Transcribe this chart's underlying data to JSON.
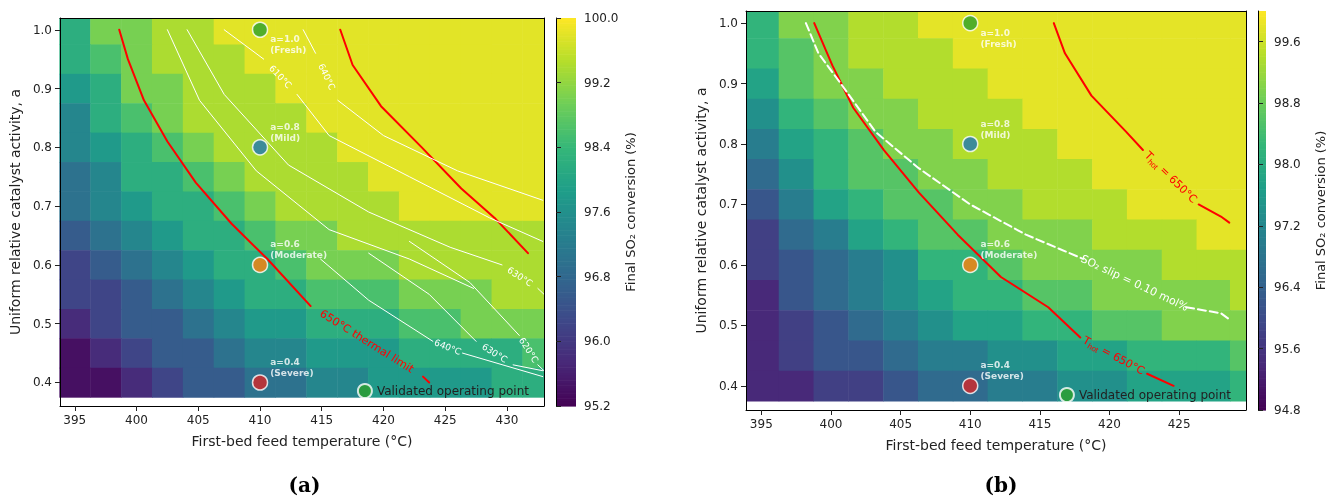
{
  "chart_data": [
    {
      "type": "heatmap",
      "title": "(a)",
      "xlabel": "First-bed feed temperature (°C)",
      "ylabel": "Uniform relative catalyst activity, a",
      "clabel": "Final SO₂ conversion (%)",
      "x": [
        395,
        397.5,
        400,
        402.5,
        405,
        407.5,
        410,
        412.5,
        415,
        417.5,
        420,
        422.5,
        425,
        427.5,
        430,
        432.5
      ],
      "y": [
        1.0,
        0.95,
        0.9,
        0.85,
        0.8,
        0.75,
        0.7,
        0.65,
        0.6,
        0.55,
        0.5,
        0.45,
        0.4
      ],
      "cells": [
        [
          98.2,
          99.0,
          99.0,
          99.4,
          99.4,
          99.8,
          99.8,
          99.8,
          99.8,
          99.8,
          99.8,
          99.8,
          99.8,
          99.8,
          99.8,
          99.8
        ],
        [
          98.2,
          98.6,
          99.0,
          99.4,
          99.4,
          99.4,
          99.8,
          99.8,
          99.8,
          99.8,
          99.8,
          99.8,
          99.8,
          99.8,
          99.8,
          99.8
        ],
        [
          97.8,
          98.2,
          99.0,
          99.0,
          99.4,
          99.4,
          99.4,
          99.8,
          99.8,
          99.8,
          99.8,
          99.8,
          99.8,
          99.8,
          99.8,
          99.8
        ],
        [
          97.4,
          98.2,
          98.6,
          99.0,
          99.4,
          99.4,
          99.4,
          99.4,
          99.8,
          99.8,
          99.8,
          99.8,
          99.8,
          99.8,
          99.8,
          99.8
        ],
        [
          97.4,
          97.8,
          98.2,
          98.6,
          99.0,
          99.4,
          99.4,
          99.4,
          99.4,
          99.8,
          99.8,
          99.8,
          99.8,
          99.8,
          99.8,
          99.8
        ],
        [
          97.0,
          97.4,
          98.2,
          98.2,
          98.6,
          99.0,
          99.4,
          99.4,
          99.4,
          99.4,
          99.8,
          99.8,
          99.8,
          99.8,
          99.8,
          99.8
        ],
        [
          97.0,
          97.4,
          97.8,
          98.2,
          98.2,
          98.6,
          99.0,
          99.4,
          99.4,
          99.4,
          99.4,
          99.8,
          99.8,
          99.8,
          99.8,
          99.8
        ],
        [
          96.6,
          97.0,
          97.4,
          97.8,
          98.2,
          98.2,
          98.6,
          99.0,
          99.0,
          99.4,
          99.4,
          99.4,
          99.4,
          99.4,
          99.4,
          99.4
        ],
        [
          96.2,
          96.6,
          97.0,
          97.4,
          97.8,
          98.2,
          98.2,
          98.6,
          99.0,
          99.0,
          99.0,
          99.4,
          99.4,
          99.4,
          99.4,
          99.4
        ],
        [
          96.2,
          96.2,
          96.6,
          97.0,
          97.4,
          97.8,
          98.2,
          98.2,
          98.6,
          98.6,
          98.6,
          99.0,
          99.0,
          99.0,
          99.4,
          99.4
        ],
        [
          95.8,
          96.2,
          96.6,
          96.6,
          97.0,
          97.4,
          97.8,
          97.8,
          98.2,
          98.2,
          98.2,
          98.6,
          98.6,
          99.0,
          99.0,
          99.0
        ],
        [
          95.4,
          95.8,
          96.2,
          96.6,
          96.6,
          97.0,
          97.4,
          97.4,
          97.8,
          97.8,
          97.8,
          98.2,
          98.2,
          98.2,
          98.2,
          98.6
        ],
        [
          95.4,
          95.4,
          95.8,
          96.2,
          96.6,
          96.6,
          97.0,
          97.0,
          97.4,
          97.4,
          97.8,
          97.8,
          97.8,
          97.8,
          98.2,
          98.2
        ]
      ],
      "clim": [
        95.2,
        100.0
      ],
      "cticks": [
        95.2,
        {
          "value": 96,
          "label": "96.0"
        },
        96.8,
        97.6,
        98.4,
        99.2,
        {
          "value": 100,
          "label": "100.0"
        }
      ],
      "xlim": [
        393.8,
        433.0
      ],
      "xticks": [
        395,
        400,
        405,
        410,
        415,
        420,
        425,
        430
      ],
      "ylim": [
        0.36,
        1.02
      ],
      "yticks": [
        0.4,
        0.5,
        0.6,
        0.7,
        0.8,
        0.9,
        {
          "value": 1,
          "label": "1.0"
        }
      ],
      "legend": "bottom right",
      "series": [
        {
          "type": "line",
          "name": "650°C thermal limit",
          "color": "#ff0000",
          "line_style": "solid",
          "marker": "none",
          "x": [
            398.6,
            399.3,
            400.6,
            402.5,
            404.8,
            407.7,
            410.6,
            414.1,
            418.6,
            423.2,
            423.7
          ],
          "values": [
            1.0,
            0.95,
            0.88,
            0.81,
            0.74,
            0.67,
            0.61,
            0.53,
            null,
            0.41,
            0.4
          ]
        },
        {
          "type": "line",
          "color": "#ff0000",
          "line_style": "solid",
          "marker": "none",
          "x": [
            416.5,
            417.5,
            419.8,
            423.1,
            426.3,
            429.0,
            431.7
          ],
          "values": [
            1.0,
            0.94,
            0.87,
            0.8,
            0.73,
            0.68,
            0.62
          ]
        },
        {
          "type": "line",
          "color": "#ffffff",
          "line_style": "solid",
          "marker": "none",
          "x": [
            402.5,
            405.1,
            409.7,
            415.6,
            422.1,
            427.3
          ],
          "values": [
            1.0,
            0.88,
            0.76,
            0.66,
            0.61,
            0.56
          ]
        },
        {
          "type": "line",
          "name": "630°C",
          "color": "#ffffff",
          "line_style": "solid",
          "marker": "none",
          "x": [
            404.1,
            407.1,
            412.3,
            418.8,
            425.4,
            429.6,
            431.4,
            432.5,
            433.0
          ],
          "values": [
            1.0,
            0.89,
            0.77,
            0.69,
            0.63,
            0.6,
            null,
            0.56,
            0.55
          ]
        },
        {
          "type": "line",
          "name": "610°C",
          "color": "#ffffff",
          "line_style": "solid",
          "marker": "none",
          "x": [
            407.1,
            410.3,
            411.7,
            413.0,
            415.6,
            422.1,
            428.6,
            432.9
          ],
          "values": [
            1.0,
            0.95,
            null,
            0.89,
            0.82,
            0.75,
            0.68,
            0.64
          ]
        },
        {
          "type": "line",
          "name": "640°C",
          "color": "#ffffff",
          "line_style": "solid",
          "marker": "none",
          "x": [
            413.5,
            414.5,
            415.4,
            416.3,
            420.0,
            426.0,
            432.9
          ],
          "values": [
            1.0,
            0.96,
            null,
            0.88,
            0.82,
            0.76,
            0.71
          ]
        },
        {
          "type": "line",
          "name": "640°C",
          "color": "#ffffff",
          "line_style": "solid",
          "marker": "none",
          "x": [
            414.9,
            418.8,
            424.0,
            425.2,
            426.4,
            432.9
          ],
          "values": [
            0.61,
            0.54,
            0.47,
            null,
            0.45,
            0.41
          ]
        },
        {
          "type": "line",
          "name": "630°C",
          "color": "#ffffff",
          "line_style": "solid",
          "marker": "none",
          "x": [
            418.8,
            423.7,
            427.5,
            429.0,
            430.5,
            432.9
          ],
          "values": [
            0.62,
            0.55,
            0.47,
            null,
            0.43,
            0.42
          ]
        },
        {
          "type": "line",
          "name": "620°C",
          "color": "#ffffff",
          "line_style": "solid",
          "marker": "none",
          "x": [
            422.1,
            427.0,
            431.0,
            432.0,
            432.5,
            433.0
          ],
          "values": [
            0.64,
            0.57,
            0.48,
            null,
            0.43,
            0.42
          ]
        },
        {
          "type": "scatter",
          "name": "Validated operating point",
          "color": "#2ca02c",
          "colors": [
            "#2ca02c",
            "#1f77b4",
            "#ff7f0e",
            "#d62728"
          ],
          "marker": "circle",
          "x": [
            410,
            410,
            410,
            410
          ],
          "values": [
            1.0,
            0.8,
            0.6,
            0.4
          ],
          "value_labels": [
            "a=1.0\n(Fresh)",
            "a=0.8\n(Mild)",
            "a=0.6\n(Moderate)",
            "a=0.4\n(Severe)"
          ]
        }
      ]
    },
    {
      "type": "heatmap",
      "title": "(b)",
      "xlabel": "First-bed feed temperature (°C)",
      "ylabel": "Uniform relative catalyst activity, a",
      "clabel": "Final SO₂ conversion (%)",
      "x": [
        395,
        397.5,
        400,
        402.5,
        405,
        407.5,
        410,
        412.5,
        415,
        417.5,
        420,
        422.5,
        425,
        427.5,
        429.8
      ],
      "y": [
        1.0,
        0.95,
        0.9,
        0.85,
        0.8,
        0.75,
        0.7,
        0.65,
        0.6,
        0.55,
        0.5,
        0.45,
        0.4
      ],
      "cells": [
        [
          98.2,
          99.0,
          99.0,
          99.4,
          99.4,
          99.8,
          99.8,
          99.8,
          99.8,
          99.8,
          99.8,
          99.8,
          99.8,
          99.8,
          99.8
        ],
        [
          98.2,
          98.6,
          99.0,
          99.4,
          99.4,
          99.4,
          99.8,
          99.8,
          99.8,
          99.8,
          99.8,
          99.8,
          99.8,
          99.8,
          99.8
        ],
        [
          97.8,
          98.6,
          99.0,
          99.0,
          99.4,
          99.4,
          99.4,
          99.8,
          99.8,
          99.8,
          99.8,
          99.8,
          99.8,
          99.8,
          99.8
        ],
        [
          97.4,
          98.2,
          98.6,
          99.0,
          99.0,
          99.4,
          99.4,
          99.4,
          99.8,
          99.8,
          99.8,
          99.8,
          99.8,
          99.8,
          99.8
        ],
        [
          97.0,
          97.8,
          98.2,
          98.6,
          99.0,
          99.0,
          99.4,
          99.4,
          99.4,
          99.8,
          99.8,
          99.8,
          99.8,
          99.8,
          99.8
        ],
        [
          96.6,
          97.4,
          98.2,
          98.6,
          98.6,
          99.0,
          99.0,
          99.4,
          99.4,
          99.4,
          99.8,
          99.8,
          99.8,
          99.8,
          99.8
        ],
        [
          96.2,
          97.0,
          97.8,
          98.2,
          98.6,
          98.6,
          99.0,
          99.0,
          99.4,
          99.4,
          99.4,
          99.8,
          99.8,
          99.8,
          99.8
        ],
        [
          95.8,
          96.6,
          97.0,
          97.8,
          98.2,
          98.6,
          98.6,
          99.0,
          99.0,
          99.0,
          99.4,
          99.4,
          99.4,
          99.8,
          99.8
        ],
        [
          95.8,
          96.2,
          96.6,
          97.0,
          97.4,
          98.2,
          98.2,
          98.6,
          99.0,
          99.0,
          99.0,
          99.0,
          99.4,
          99.4,
          99.4
        ],
        [
          95.4,
          96.2,
          96.6,
          97.0,
          97.4,
          97.8,
          98.2,
          98.2,
          98.6,
          98.6,
          99.0,
          99.0,
          99.0,
          99.0,
          99.4
        ],
        [
          95.4,
          95.8,
          96.2,
          96.6,
          97.0,
          97.4,
          97.8,
          97.8,
          98.2,
          98.2,
          98.6,
          98.6,
          99.0,
          99.0,
          99.0
        ],
        [
          95.4,
          95.8,
          96.2,
          96.2,
          96.6,
          97.0,
          97.0,
          97.4,
          97.4,
          97.8,
          97.8,
          98.2,
          98.2,
          98.2,
          98.6
        ],
        [
          95.4,
          95.4,
          95.8,
          95.8,
          96.2,
          96.6,
          96.6,
          97.0,
          97.0,
          97.4,
          97.4,
          97.8,
          97.8,
          97.8,
          98.2
        ]
      ],
      "clim": [
        94.8,
        100.0
      ],
      "cticks": [
        94.8,
        95.6,
        96.4,
        97.2,
        {
          "value": 98,
          "label": "98.0"
        },
        98.8,
        99.6
      ],
      "xlim": [
        393.9,
        429.8
      ],
      "xticks": [
        395,
        400,
        405,
        410,
        415,
        420,
        425
      ],
      "ylim": [
        0.36,
        1.02
      ],
      "yticks": [
        0.4,
        0.5,
        0.6,
        0.7,
        0.8,
        0.9,
        {
          "value": 1,
          "label": "1.0"
        }
      ],
      "legend": "bottom right",
      "series": [
        {
          "type": "line",
          "name": "T$_{hot}$ = 650°C",
          "color": "#ff0000",
          "line_style": "solid",
          "marker": "none",
          "x": [
            398.8,
            400.1,
            401.6,
            403.8,
            406.3,
            409.1,
            412.2,
            415.6,
            417.9,
            420.3,
            422.7,
            424.6
          ],
          "values": [
            1.0,
            0.93,
            0.86,
            0.79,
            0.72,
            0.65,
            0.58,
            0.53,
            0.48,
            null,
            0.42,
            0.4
          ]
        },
        {
          "type": "line",
          "name": "T$_{hot}$ = 650°C",
          "color": "#ff0000",
          "line_style": "solid",
          "marker": "none",
          "x": [
            416.0,
            416.8,
            418.7,
            421.2,
            422.4,
            424.4,
            426.4,
            428.0,
            428.6
          ],
          "values": [
            1.0,
            0.95,
            0.88,
            0.82,
            0.79,
            null,
            0.7,
            0.68,
            0.67
          ]
        },
        {
          "type": "line",
          "name": "SO₂ slip = 0.10 mol%",
          "color": "#ffffff",
          "line_style": "dashed",
          "marker": "none",
          "x": [
            398.2,
            399.1,
            400.7,
            403.2,
            406.3,
            410.0,
            414.0,
            418.1,
            421.8,
            425.5,
            428.0,
            428.6
          ],
          "values": [
            1.0,
            0.95,
            0.9,
            0.82,
            0.76,
            0.7,
            0.65,
            0.61,
            null,
            0.53,
            0.52,
            0.51
          ]
        },
        {
          "type": "scatter",
          "name": "Validated operating point",
          "color": "#2ca02c",
          "colors": [
            "#2ca02c",
            "#1f77b4",
            "#ff7f0e",
            "#d62728"
          ],
          "marker": "circle",
          "x": [
            410,
            410,
            410,
            410
          ],
          "values": [
            1.0,
            0.8,
            0.6,
            0.4
          ],
          "value_labels": [
            "a=1.0\n(Fresh)",
            "a=0.8\n(Mild)",
            "a=0.6\n(Moderate)",
            "a=0.4\n(Severe)"
          ]
        }
      ]
    }
  ]
}
